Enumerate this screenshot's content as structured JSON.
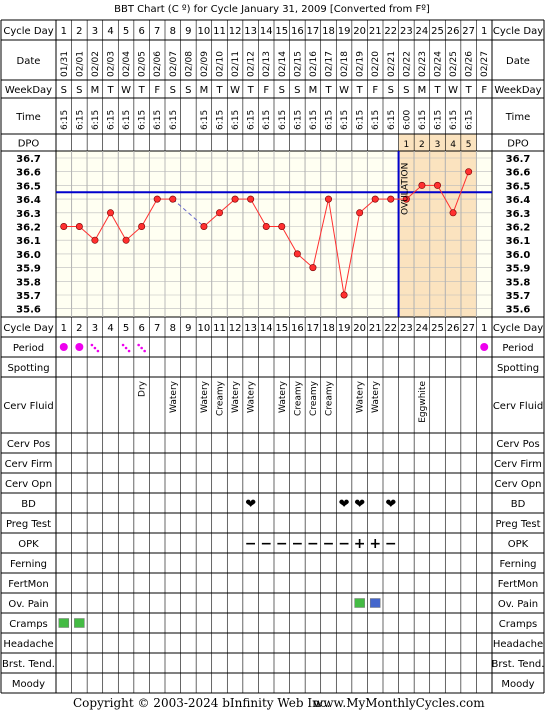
{
  "title": "BBT Chart (C º) for Cycle January 31, 2009  [Converted from Fº]",
  "footer": {
    "copyright": "Copyright © 2003-2024 bInfinity Web Inc.",
    "site": "www.MyMonthlyCycles.com"
  },
  "row_labels": {
    "cycle_day": "Cycle Day",
    "date": "Date",
    "weekday": "WeekDay",
    "time": "Time",
    "dpo": "DPO",
    "period": "Period",
    "spotting": "Spotting",
    "cerv_fluid": "Cerv Fluid",
    "cerv_pos": "Cerv Pos",
    "cerv_firm": "Cerv Firm",
    "cerv_opn": "Cerv Opn",
    "bd": "BD",
    "preg_test": "Preg Test",
    "opk": "OPK",
    "ferning": "Ferning",
    "fertmon": "FertMon",
    "ov_pain": "Ov. Pain",
    "cramps": "Cramps",
    "headache": "Headache",
    "brst_tend": "Brst. Tend.",
    "moody": "Moody"
  },
  "ovulation_label": "OVULATION",
  "colors": {
    "temp_line": "#ff3030",
    "coverline": "#0000cc",
    "ovulation_line": "#0000cc",
    "luteal_bg": "#fbe3bf",
    "chart_bg": "#fffff2",
    "period_dot": "#ee00ee",
    "bd_heart": "#e8508a",
    "opk_neg": "#8a2be2",
    "green_box": "#44bb44",
    "blue_box": "#4466cc"
  },
  "chart_data": {
    "type": "line",
    "cycle_days": [
      "1",
      "2",
      "3",
      "4",
      "5",
      "6",
      "7",
      "8",
      "9",
      "10",
      "11",
      "12",
      "13",
      "14",
      "15",
      "16",
      "17",
      "18",
      "19",
      "20",
      "21",
      "22",
      "23",
      "24",
      "25",
      "26",
      "27",
      "1"
    ],
    "dates": [
      "01/31",
      "02/01",
      "02/02",
      "02/03",
      "02/04",
      "02/05",
      "02/06",
      "02/07",
      "02/08",
      "02/09",
      "02/10",
      "02/11",
      "02/12",
      "02/13",
      "02/14",
      "02/15",
      "02/16",
      "02/17",
      "02/18",
      "02/19",
      "02/20",
      "02/21",
      "02/22",
      "02/23",
      "02/24",
      "02/25",
      "02/26",
      "02/27"
    ],
    "weekdays": [
      "S",
      "S",
      "M",
      "T",
      "W",
      "T",
      "F",
      "S",
      "S",
      "M",
      "T",
      "W",
      "T",
      "F",
      "S",
      "S",
      "M",
      "T",
      "W",
      "T",
      "F",
      "S",
      "S",
      "M",
      "T",
      "W",
      "T",
      "F"
    ],
    "times": [
      "6:15",
      "6:15",
      "6:15",
      "6:15",
      "6:15",
      "6:15",
      "6:15",
      "6:15",
      "",
      "6:15",
      "6:15",
      "6:15",
      "6:15",
      "6:15",
      "6:15",
      "6:15",
      "6:15",
      "6:15",
      "6:15",
      "6:15",
      "6:15",
      "6:15",
      "6:00",
      "6:15",
      "6:15",
      "6:15",
      "6:15",
      ""
    ],
    "dpo": [
      "",
      "",
      "",
      "",
      "",
      "",
      "",
      "",
      "",
      "",
      "",
      "",
      "",
      "",
      "",
      "",
      "",
      "",
      "",
      "",
      "",
      "",
      "1",
      "2",
      "3",
      "4",
      "5",
      ""
    ],
    "temperatures": [
      36.2,
      36.2,
      36.1,
      36.3,
      36.1,
      36.2,
      36.4,
      36.4,
      null,
      36.2,
      36.3,
      36.4,
      36.4,
      36.2,
      36.2,
      36.0,
      35.9,
      36.4,
      35.7,
      36.3,
      36.4,
      36.4,
      36.4,
      36.5,
      36.5,
      36.3,
      36.6,
      null
    ],
    "dashed_segment": [
      8,
      10
    ],
    "y_ticks": [
      36.7,
      36.6,
      36.5,
      36.4,
      36.3,
      36.2,
      36.1,
      36.0,
      35.9,
      35.8,
      35.7,
      35.6
    ],
    "ylim": [
      35.6,
      36.7
    ],
    "coverline": 36.45,
    "ovulation_after_day_index": 21,
    "luteal_start_index": 22,
    "luteal_end_index": 26,
    "period_days": {
      "heavy": [
        0,
        1,
        27
      ],
      "light": [
        2,
        4,
        5
      ]
    },
    "cerv_fluid": {
      "5": "Dry",
      "7": "Watery",
      "9": "Watery",
      "10": "Creamy",
      "11": "Watery",
      "12": "Watery",
      "14": "Watery",
      "15": "Creamy",
      "16": "Creamy",
      "17": "Creamy",
      "19": "Watery",
      "20": "Watery",
      "23": "Eggwhite"
    },
    "bd_days": [
      12,
      18,
      19,
      21
    ],
    "opk": {
      "12": "−",
      "13": "−",
      "14": "−",
      "15": "−",
      "16": "−",
      "17": "−",
      "18": "−",
      "19": "+",
      "20": "+",
      "21": "−"
    },
    "ov_pain": {
      "19": "green",
      "20": "blue"
    },
    "cramps": {
      "0": "green",
      "1": "green"
    }
  }
}
